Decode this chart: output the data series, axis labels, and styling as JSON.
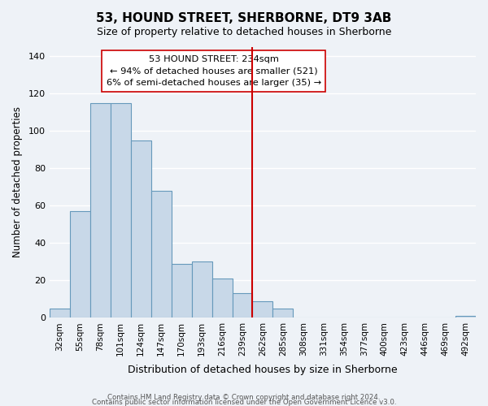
{
  "title": "53, HOUND STREET, SHERBORNE, DT9 3AB",
  "subtitle": "Size of property relative to detached houses in Sherborne",
  "xlabel": "Distribution of detached houses by size in Sherborne",
  "ylabel": "Number of detached properties",
  "footer_line1": "Contains HM Land Registry data © Crown copyright and database right 2024.",
  "footer_line2": "Contains public sector information licensed under the Open Government Licence v3.0.",
  "bin_labels": [
    "32sqm",
    "55sqm",
    "78sqm",
    "101sqm",
    "124sqm",
    "147sqm",
    "170sqm",
    "193sqm",
    "216sqm",
    "239sqm",
    "262sqm",
    "285sqm",
    "308sqm",
    "331sqm",
    "354sqm",
    "377sqm",
    "400sqm",
    "423sqm",
    "446sqm",
    "469sqm",
    "492sqm"
  ],
  "bar_heights": [
    5,
    57,
    115,
    115,
    95,
    68,
    29,
    30,
    21,
    13,
    9,
    5,
    0,
    0,
    0,
    0,
    0,
    0,
    0,
    0,
    1
  ],
  "bar_color": "#c8d8e8",
  "bar_edgecolor": "#6699bb",
  "vline_x": 9.5,
  "vline_color": "#cc0000",
  "annotation_title": "53 HOUND STREET: 234sqm",
  "annotation_line1": "← 94% of detached houses are smaller (521)",
  "annotation_line2": "6% of semi-detached houses are larger (35) →",
  "ylim": [
    0,
    145
  ],
  "yticks": [
    0,
    20,
    40,
    60,
    80,
    100,
    120,
    140
  ],
  "background_color": "#eef2f7"
}
